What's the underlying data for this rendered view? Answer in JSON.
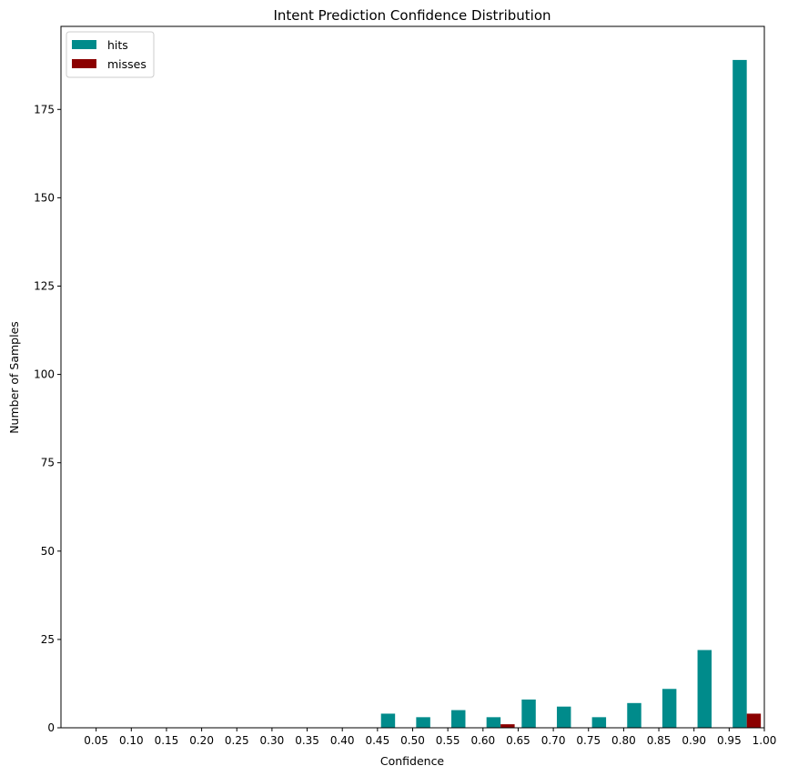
{
  "chart_data": {
    "type": "bar",
    "title": "Intent Prediction Confidence Distribution",
    "xlabel": "Confidence",
    "ylabel": "Number of Samples",
    "categories": [
      "0.05",
      "0.10",
      "0.15",
      "0.20",
      "0.25",
      "0.30",
      "0.35",
      "0.40",
      "0.45",
      "0.50",
      "0.55",
      "0.60",
      "0.65",
      "0.70",
      "0.75",
      "0.80",
      "0.85",
      "0.90",
      "0.95",
      "1.00"
    ],
    "x_ticks": [
      "0.05",
      "0.10",
      "0.15",
      "0.20",
      "0.25",
      "0.30",
      "0.35",
      "0.40",
      "0.45",
      "0.50",
      "0.55",
      "0.60",
      "0.65",
      "0.70",
      "0.75",
      "0.80",
      "0.85",
      "0.90",
      "0.95",
      "1.00"
    ],
    "y_ticks": [
      0,
      25,
      50,
      75,
      100,
      125,
      150,
      175
    ],
    "ylim": [
      0,
      198.5
    ],
    "xlim": [
      0.0,
      1.0
    ],
    "bin_width": 0.05,
    "grid": false,
    "legend": "top-left",
    "series": [
      {
        "name": "hits",
        "color": "#008b8b",
        "values": [
          0,
          0,
          0,
          0,
          0,
          0,
          0,
          0,
          0,
          4,
          3,
          5,
          3,
          8,
          6,
          3,
          7,
          11,
          22,
          189
        ]
      },
      {
        "name": "misses",
        "color": "#8b0000",
        "values": [
          0,
          0,
          0,
          0,
          0,
          0,
          0,
          0,
          0,
          0,
          0,
          0,
          1,
          0,
          0,
          0,
          0,
          0,
          0,
          4
        ]
      }
    ]
  }
}
